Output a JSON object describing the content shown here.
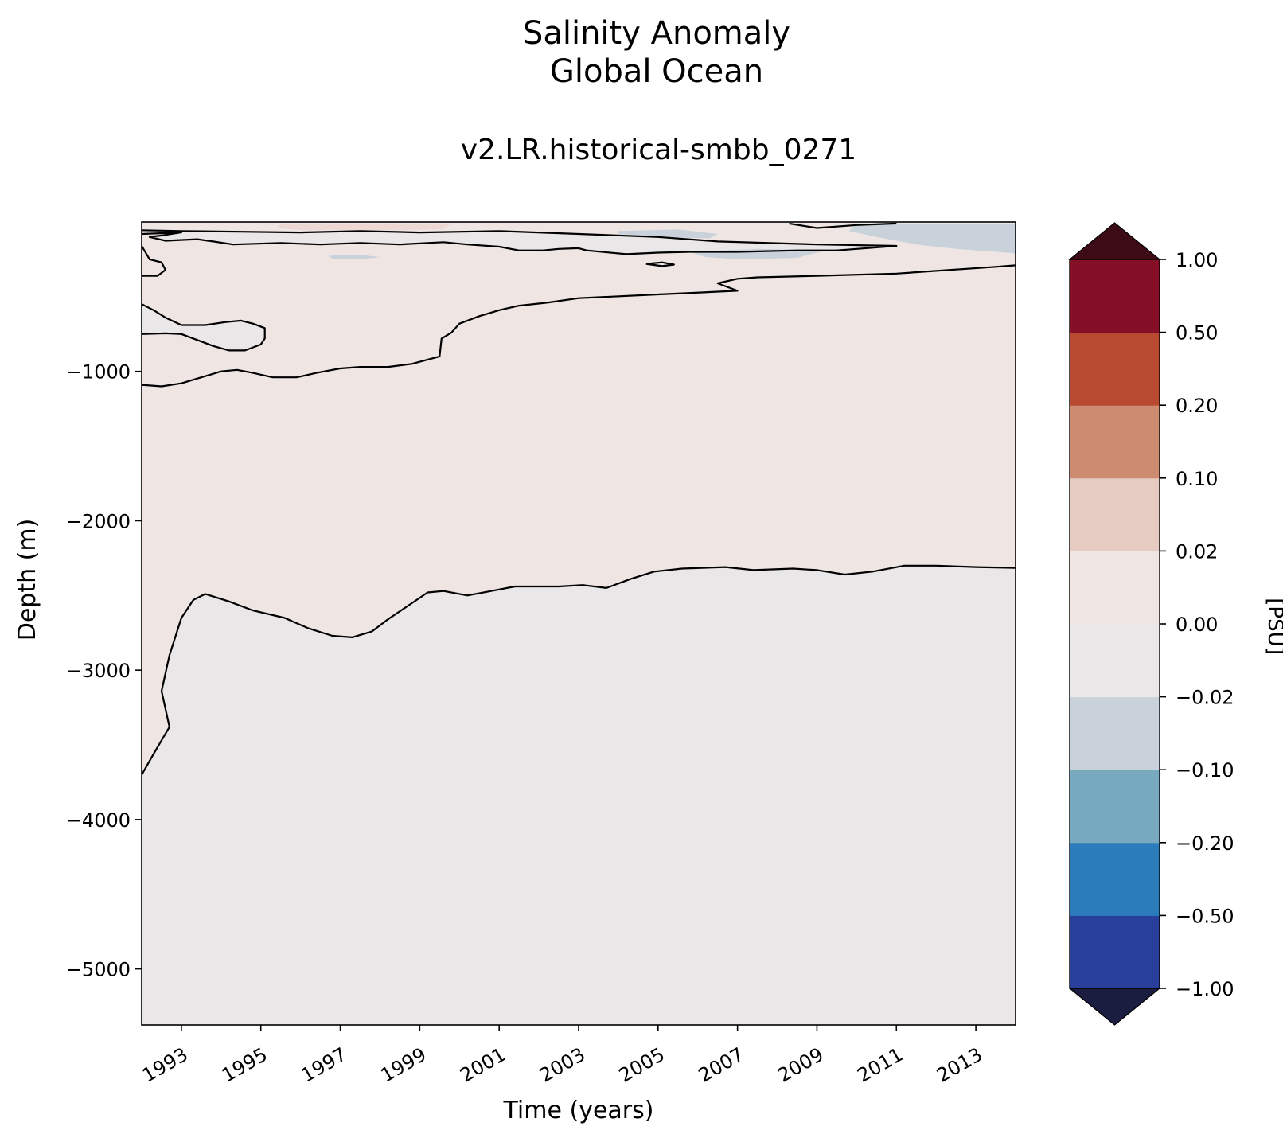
{
  "chart_data": {
    "type": "contourf",
    "title_lines": [
      "Salinity Anomaly",
      "Global Ocean"
    ],
    "subtitle": "v2.LR.historical-smbb_0271",
    "xlabel": "Time (years)",
    "ylabel": "Depth (m)",
    "xlim": [
      1992.0,
      2014.0
    ],
    "ylim": [
      -5375,
      0
    ],
    "x_ticks": [
      1993,
      1995,
      1997,
      1999,
      2001,
      2003,
      2005,
      2007,
      2009,
      2011,
      2013
    ],
    "x_tick_labels": [
      "1993",
      "1995",
      "1997",
      "1999",
      "2001",
      "2003",
      "2005",
      "2007",
      "2009",
      "2011",
      "2013"
    ],
    "y_ticks": [
      -1000,
      -2000,
      -3000,
      -4000,
      -5000
    ],
    "y_tick_labels": [
      "−1000",
      "−2000",
      "−3000",
      "−4000",
      "−5000"
    ],
    "colorbar": {
      "label": "[PSU]",
      "levels": [
        -1.0,
        -0.5,
        -0.2,
        -0.1,
        -0.02,
        0.0,
        0.02,
        0.1,
        0.2,
        0.5,
        1.0
      ],
      "tick_labels": [
        "−1.00",
        "−0.50",
        "−0.20",
        "−0.10",
        "−0.02",
        "0.00",
        "0.02",
        "0.10",
        "0.20",
        "0.50",
        "1.00"
      ],
      "colors": [
        "#283f9c",
        "#2a7cbb",
        "#78aabf",
        "#c9d2da",
        "#e9e7e8",
        "#efe6e4",
        "#e6cbc2",
        "#cd8b72",
        "#b84a32",
        "#840f26"
      ],
      "under_color": "#1a1c40",
      "over_color": "#3d0b15",
      "extend": "both"
    },
    "fill_colors": {
      "positive_weak": "#efe6e4",
      "negative_weak": "#e9e7e8",
      "positive_mid": "#eed8d4",
      "negative_mid": "#c9d2da",
      "lightest": "#f5f1f1"
    },
    "zero_contours": [
      {
        "name": "deep-zero-contour",
        "points": [
          [
            1992.0,
            -3700
          ],
          [
            1992.3,
            -3560
          ],
          [
            1992.7,
            -3380
          ],
          [
            1992.5,
            -3140
          ],
          [
            1992.7,
            -2900
          ],
          [
            1993.0,
            -2650
          ],
          [
            1993.3,
            -2530
          ],
          [
            1993.6,
            -2490
          ],
          [
            1994.2,
            -2540
          ],
          [
            1994.8,
            -2600
          ],
          [
            1995.6,
            -2650
          ],
          [
            1996.2,
            -2720
          ],
          [
            1996.8,
            -2770
          ],
          [
            1997.3,
            -2780
          ],
          [
            1997.8,
            -2740
          ],
          [
            1998.2,
            -2660
          ],
          [
            1998.7,
            -2570
          ],
          [
            1999.2,
            -2480
          ],
          [
            1999.6,
            -2470
          ],
          [
            2000.2,
            -2500
          ],
          [
            2000.8,
            -2470
          ],
          [
            2001.4,
            -2440
          ],
          [
            2002.5,
            -2440
          ],
          [
            2003.1,
            -2430
          ],
          [
            2003.7,
            -2450
          ],
          [
            2004.3,
            -2390
          ],
          [
            2004.9,
            -2340
          ],
          [
            2005.6,
            -2320
          ],
          [
            2006.7,
            -2310
          ],
          [
            2007.4,
            -2330
          ],
          [
            2008.4,
            -2320
          ],
          [
            2009.0,
            -2330
          ],
          [
            2009.7,
            -2360
          ],
          [
            2010.4,
            -2340
          ],
          [
            2011.2,
            -2300
          ],
          [
            2012.0,
            -2300
          ],
          [
            2013.0,
            -2310
          ],
          [
            2014.0,
            -2315
          ]
        ]
      },
      {
        "name": "upper-zero-contour",
        "points": [
          [
            1992.0,
            -1090
          ],
          [
            1992.5,
            -1100
          ],
          [
            1993.0,
            -1080
          ],
          [
            1993.5,
            -1040
          ],
          [
            1994.0,
            -1000
          ],
          [
            1994.4,
            -990
          ],
          [
            1994.8,
            -1010
          ],
          [
            1995.3,
            -1040
          ],
          [
            1995.9,
            -1040
          ],
          [
            1996.4,
            -1010
          ],
          [
            1997.0,
            -980
          ],
          [
            1997.5,
            -970
          ],
          [
            1998.2,
            -970
          ],
          [
            1998.8,
            -950
          ],
          [
            1999.5,
            -900
          ],
          [
            1999.55,
            -780
          ],
          [
            1999.8,
            -740
          ],
          [
            2000.0,
            -680
          ],
          [
            2000.5,
            -630
          ],
          [
            2001.0,
            -590
          ],
          [
            2001.5,
            -560
          ],
          [
            2002.2,
            -540
          ],
          [
            2003.0,
            -510
          ],
          [
            2005.0,
            -485
          ],
          [
            2007.0,
            -460
          ],
          [
            2006.5,
            -410
          ],
          [
            2007.0,
            -380
          ],
          [
            2007.5,
            -370
          ],
          [
            2009.0,
            -360
          ],
          [
            2011.0,
            -345
          ],
          [
            2013.5,
            -300
          ],
          [
            2014.0,
            -290
          ]
        ]
      },
      {
        "name": "lens-zero-contour",
        "points": [
          [
            1992.0,
            -750
          ],
          [
            1992.6,
            -745
          ],
          [
            1993.0,
            -750
          ],
          [
            1993.4,
            -790
          ],
          [
            1993.8,
            -830
          ],
          [
            1994.2,
            -860
          ],
          [
            1994.6,
            -860
          ],
          [
            1995.0,
            -820
          ],
          [
            1995.1,
            -780
          ],
          [
            1995.1,
            -710
          ],
          [
            1994.8,
            -680
          ],
          [
            1994.5,
            -660
          ],
          [
            1994.1,
            -670
          ],
          [
            1993.6,
            -690
          ],
          [
            1993.0,
            -690
          ],
          [
            1992.6,
            -640
          ],
          [
            1992.3,
            -590
          ],
          [
            1992.0,
            -550
          ]
        ]
      },
      {
        "name": "surface-zero-contour",
        "points": [
          [
            1992.0,
            -160
          ],
          [
            1992.2,
            -250
          ],
          [
            1992.5,
            -270
          ],
          [
            1992.6,
            -320
          ],
          [
            1992.4,
            -360
          ],
          [
            1992.0,
            -360
          ]
        ]
      },
      {
        "name": "surface-zero-contour-2",
        "points": [
          [
            1992.0,
            -80
          ],
          [
            1993.0,
            -70
          ],
          [
            1992.5,
            -90
          ],
          [
            1992.2,
            -100
          ],
          [
            1992.6,
            -125
          ],
          [
            1993.4,
            -115
          ],
          [
            1993.8,
            -130
          ],
          [
            1994.3,
            -150
          ],
          [
            1995.5,
            -140
          ],
          [
            1996.5,
            -150
          ],
          [
            1997.5,
            -140
          ],
          [
            1998.5,
            -150
          ],
          [
            1999.2,
            -140
          ],
          [
            1999.6,
            -135
          ],
          [
            2000.2,
            -150
          ],
          [
            2001.0,
            -165
          ],
          [
            2001.5,
            -190
          ],
          [
            2002.1,
            -190
          ],
          [
            2002.5,
            -180
          ],
          [
            2003.0,
            -175
          ],
          [
            2003.2,
            -190
          ],
          [
            2004.2,
            -215
          ],
          [
            2005.0,
            -205
          ],
          [
            2005.8,
            -200
          ],
          [
            2007.0,
            -200
          ],
          [
            2008.5,
            -190
          ],
          [
            2009.5,
            -190
          ],
          [
            2010.0,
            -180
          ],
          [
            2011.0,
            -160
          ],
          [
            2009.0,
            -150
          ],
          [
            2006.5,
            -130
          ],
          [
            2005.0,
            -100
          ],
          [
            2003.0,
            -80
          ],
          [
            2001.0,
            -60
          ],
          [
            1999.0,
            -70
          ],
          [
            1997.5,
            -60
          ],
          [
            1996.0,
            -70
          ],
          [
            1994.5,
            -65
          ],
          [
            1993.0,
            -60
          ],
          [
            1992.0,
            -55
          ]
        ]
      },
      {
        "name": "top-zero-contour",
        "points": [
          [
            2008.3,
            -10
          ],
          [
            2009.0,
            -40
          ],
          [
            2010.0,
            -20
          ],
          [
            2011.0,
            -10
          ]
        ]
      },
      {
        "name": "small-negative-contour",
        "points": [
          [
            2004.7,
            -280
          ],
          [
            2005.1,
            -270
          ],
          [
            2005.4,
            -285
          ],
          [
            2005.1,
            -295
          ],
          [
            2004.7,
            -280
          ]
        ]
      }
    ],
    "negative_patches": [
      {
        "name": "negative-patch-top-right",
        "points": [
          [
            2010.0,
            -10
          ],
          [
            2014.0,
            -10
          ],
          [
            2014.0,
            -210
          ],
          [
            2012.5,
            -180
          ],
          [
            2011.5,
            -150
          ],
          [
            2010.5,
            -100
          ],
          [
            2009.8,
            -60
          ]
        ]
      },
      {
        "name": "negative-patch-mid-1",
        "points": [
          [
            2004.0,
            -60
          ],
          [
            2005.5,
            -50
          ],
          [
            2006.5,
            -80
          ],
          [
            2006.3,
            -110
          ],
          [
            2005.0,
            -100
          ],
          [
            2004.0,
            -80
          ]
        ]
      },
      {
        "name": "negative-patch-mid-2",
        "points": [
          [
            2005.8,
            -200
          ],
          [
            2007.5,
            -180
          ],
          [
            2009.2,
            -190
          ],
          [
            2008.5,
            -240
          ],
          [
            2007.0,
            -250
          ],
          [
            2006.2,
            -235
          ]
        ]
      },
      {
        "name": "negative-patch-left",
        "points": [
          [
            1996.7,
            -225
          ],
          [
            1997.5,
            -220
          ],
          [
            1998.0,
            -235
          ],
          [
            1997.5,
            -250
          ],
          [
            1996.8,
            -245
          ]
        ]
      }
    ],
    "positive_patches": [
      {
        "name": "positive-patch-top",
        "points": [
          [
            1995.5,
            -10
          ],
          [
            1999.8,
            -10
          ],
          [
            1999.6,
            -50
          ],
          [
            1998.0,
            -55
          ],
          [
            1996.0,
            -55
          ],
          [
            1995.4,
            -40
          ]
        ]
      }
    ]
  }
}
